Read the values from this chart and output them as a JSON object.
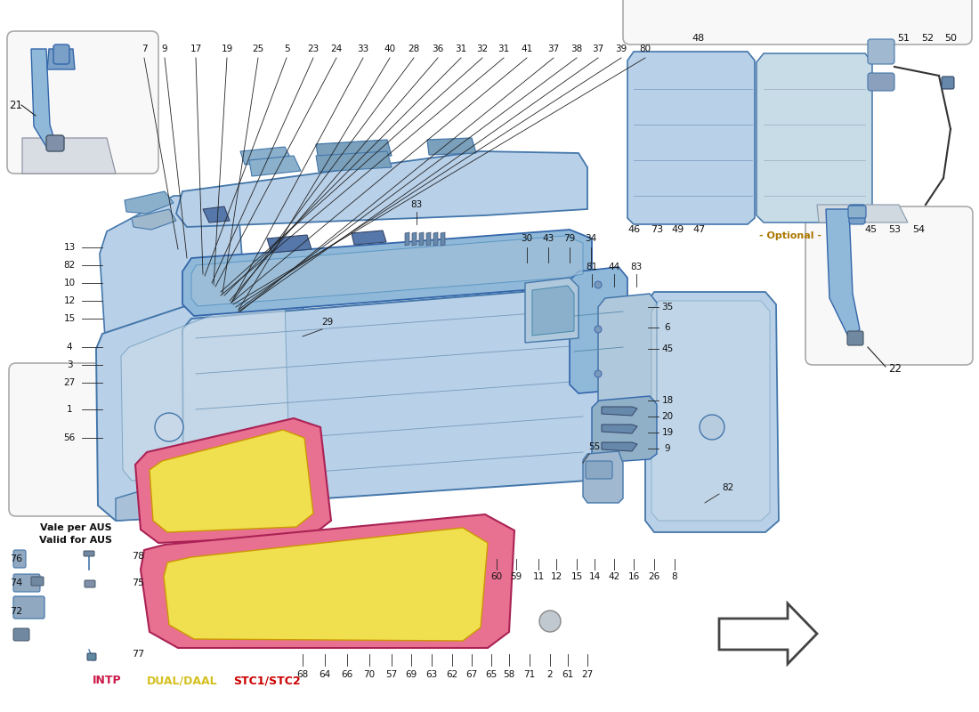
{
  "bg_color": "#ffffff",
  "blue_light": "#b8d0e8",
  "blue_mid": "#90b8d8",
  "blue_dark": "#6898c0",
  "pink": "#e87090",
  "yellow": "#f0e050",
  "line_color": "#222222",
  "label_fs": 7.5,
  "intp_color": "#cc1a4a",
  "dual_color": "#d4c020",
  "stc_color": "#cc0000",
  "optional_color": "#aa7700",
  "top_numbers_left": [
    "7",
    "9",
    "17",
    "19",
    "25",
    "5",
    "23",
    "24",
    "33",
    "40",
    "28",
    "36",
    "31",
    "32",
    "31",
    "41",
    "37",
    "38",
    "37",
    "39",
    "80"
  ],
  "bottom_numbers": [
    "68",
    "64",
    "66",
    "70",
    "57",
    "69",
    "63",
    "62",
    "67",
    "65",
    "58",
    "71",
    "2",
    "61",
    "27"
  ],
  "left_numbers": [
    "13",
    "82",
    "10",
    "12",
    "15",
    "4",
    "3",
    "27",
    "1",
    "56"
  ],
  "right_col1": [
    "35",
    "6",
    "45"
  ],
  "right_col2": [
    "18",
    "20",
    "19",
    "9"
  ],
  "group_30": [
    "30",
    "43",
    "79",
    "34"
  ],
  "group_81": [
    "81",
    "44",
    "83"
  ],
  "bot2_numbers": [
    "60",
    "59",
    "11",
    "12",
    "15",
    "14",
    "42",
    "16",
    "26",
    "8"
  ],
  "aus_label1": "Vale per AUS",
  "aus_label2": "Valid for AUS",
  "aus_numbers": [
    [
      "76",
      "78"
    ],
    [
      "74",
      "75"
    ],
    [
      "72",
      "77"
    ]
  ],
  "legend": [
    [
      "INTP",
      "#cc1a4a"
    ],
    [
      "DUAL/DAAL",
      "#d4c020"
    ],
    [
      "STC1/STC2",
      "#cc0000"
    ]
  ],
  "optional_label": "- Optional -",
  "label_48": "48",
  "labels_51_52_50": [
    "51",
    "52",
    "50"
  ],
  "labels_46_73_49_47": [
    "46",
    "73",
    "49",
    "47"
  ],
  "labels_45_53_54": [
    "45",
    "53",
    "54"
  ]
}
